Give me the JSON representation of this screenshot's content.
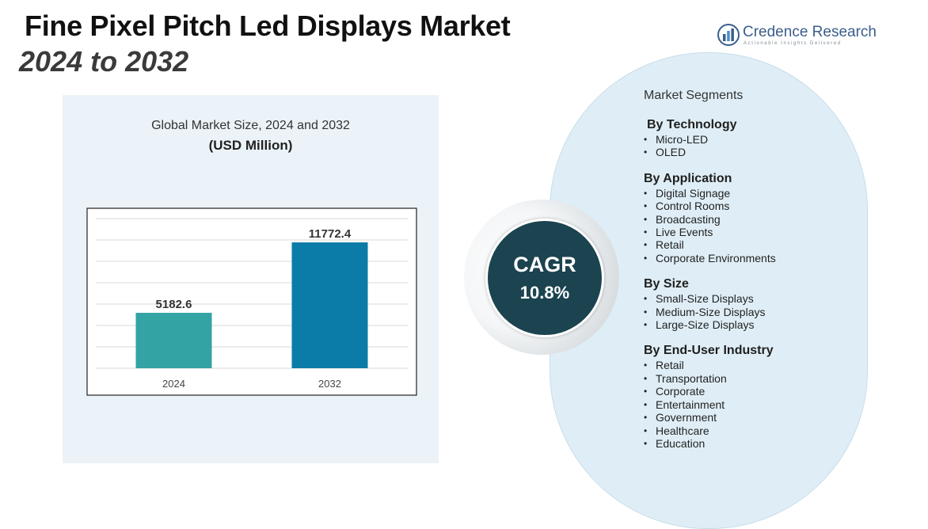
{
  "header": {
    "title_line1": "Fine Pixel Pitch Led Displays Market",
    "title_line2": "2024 to 2032"
  },
  "logo": {
    "name": "Credence Research",
    "tagline": "Actionable Insights Delivered",
    "icon": "bar-chart-logo-icon",
    "color": "#3b5e8c"
  },
  "chart_data": {
    "type": "bar",
    "title": "Global Market Size, 2024 and 2032",
    "unit_label": "(USD Million)",
    "categories": [
      "2024",
      "2032"
    ],
    "values": [
      5182.6,
      11772.4
    ],
    "value_labels": [
      "5182.6",
      "11772.4"
    ],
    "colors": [
      "#33a3a3",
      "#0b7ba8"
    ],
    "ylim": [
      0,
      14000
    ],
    "grid": true,
    "legend": "none"
  },
  "cagr": {
    "label": "CAGR",
    "value": "10.8%",
    "color": "#1b4350"
  },
  "segments": {
    "heading": "Market Segments",
    "groups": [
      {
        "title": "By Technology",
        "items": [
          "Micro-LED",
          "OLED"
        ]
      },
      {
        "title": "By Application",
        "items": [
          "Digital Signage",
          "Control Rooms",
          "Broadcasting",
          "Live Events",
          "Retail",
          "Corporate Environments"
        ]
      },
      {
        "title": "By Size",
        "items": [
          "Small-Size Displays",
          "Medium-Size Displays",
          "Large-Size Displays"
        ]
      },
      {
        "title": "By End-User Industry",
        "items": [
          "Retail",
          "Transportation",
          "Corporate",
          "Entertainment",
          "Government",
          "Healthcare",
          "Education"
        ]
      }
    ]
  }
}
